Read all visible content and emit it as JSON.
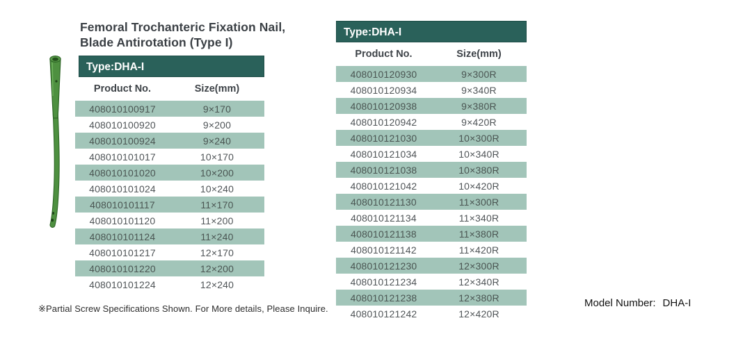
{
  "page": {
    "title_line1": "Femoral Trochanteric Fixation Nail,",
    "title_line2": "Blade Antirotation  (Type I)",
    "footnote": "※Partial Screw Specifications Shown. For More details, Please Inquire.",
    "model_number_label": "Model Number:",
    "model_number_value": "DHA-I"
  },
  "colors": {
    "band_teal": "#2a615a",
    "row_shade": "#a2c5b9",
    "nail_green": "#4e9040"
  },
  "left_table": {
    "type_label": "Type:DHA-I",
    "columns": [
      "Product No.",
      "Size(mm)"
    ],
    "rows": [
      [
        "408010100917",
        "9×170"
      ],
      [
        "408010100920",
        "9×200"
      ],
      [
        "408010100924",
        "9×240"
      ],
      [
        "408010101017",
        "10×170"
      ],
      [
        "408010101020",
        "10×200"
      ],
      [
        "408010101024",
        "10×240"
      ],
      [
        "408010101117",
        "11×170"
      ],
      [
        "408010101120",
        "11×200"
      ],
      [
        "408010101124",
        "11×240"
      ],
      [
        "408010101217",
        "12×170"
      ],
      [
        "408010101220",
        "12×200"
      ],
      [
        "408010101224",
        "12×240"
      ]
    ]
  },
  "right_table": {
    "type_label": "Type:DHA-I",
    "columns": [
      "Product No.",
      "Size(mm)"
    ],
    "rows": [
      [
        "408010120930",
        "9×300R"
      ],
      [
        "408010120934",
        "9×340R"
      ],
      [
        "408010120938",
        "9×380R"
      ],
      [
        "408010120942",
        "9×420R"
      ],
      [
        "408010121030",
        "10×300R"
      ],
      [
        "408010121034",
        "10×340R"
      ],
      [
        "408010121038",
        "10×380R"
      ],
      [
        "408010121042",
        "10×420R"
      ],
      [
        "408010121130",
        "11×300R"
      ],
      [
        "408010121134",
        "11×340R"
      ],
      [
        "408010121138",
        "11×380R"
      ],
      [
        "408010121142",
        "11×420R"
      ],
      [
        "408010121230",
        "12×300R"
      ],
      [
        "408010121234",
        "12×340R"
      ],
      [
        "408010121238",
        "12×380R"
      ],
      [
        "408010121242",
        "12×420R"
      ]
    ]
  }
}
